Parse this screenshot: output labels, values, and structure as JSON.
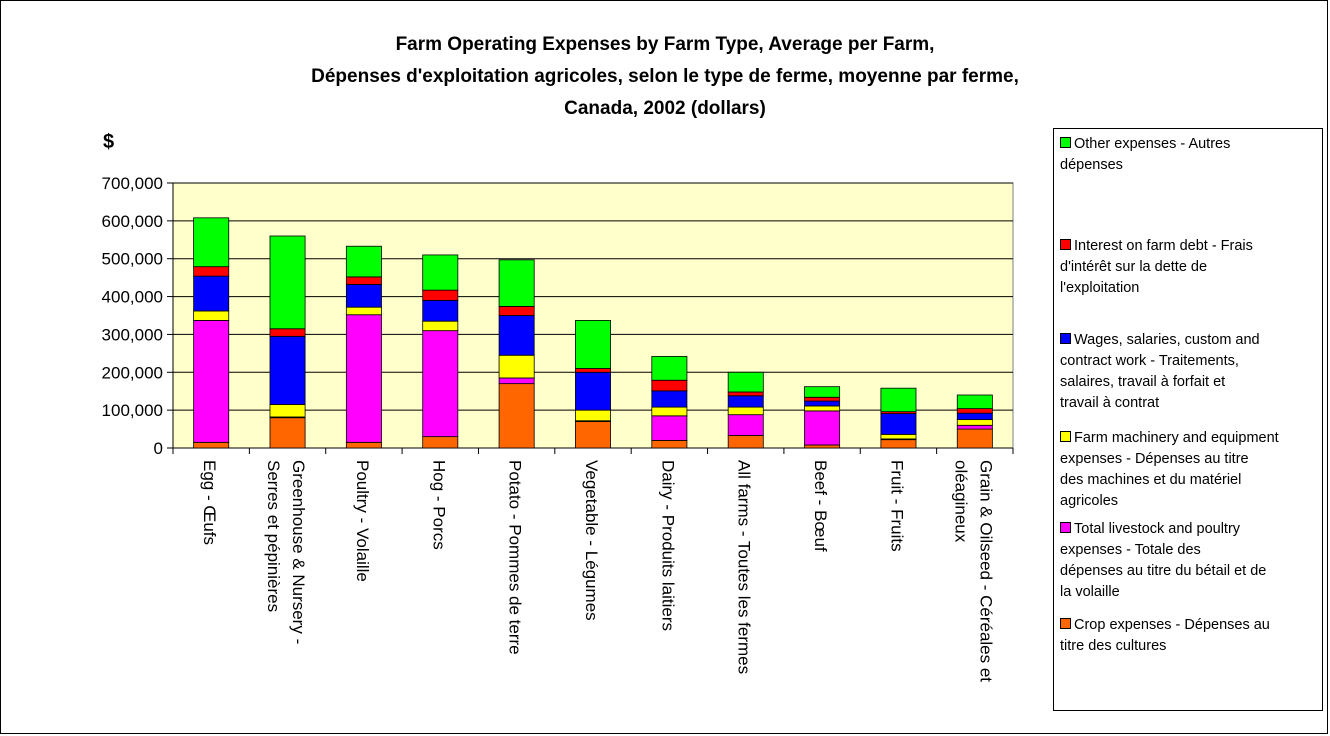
{
  "title_lines": [
    "Farm Operating Expenses by Farm Type, Average per Farm,",
    "Dépenses d'exploitation agricoles, selon le type de ferme, moyenne par ferme,",
    "Canada, 2002 (dollars)"
  ],
  "colors": {
    "plot_background": "#ffffcc",
    "crop": "#ff6600",
    "livestock": "#ff00ff",
    "machinery": "#ffff00",
    "wages": "#0000ff",
    "interest": "#ff0000",
    "other": "#00ff00"
  },
  "chart_data": {
    "type": "bar",
    "stacked": true,
    "ylabel": "$",
    "ylim": [
      0,
      700000
    ],
    "yticks": [
      0,
      100000,
      200000,
      300000,
      400000,
      500000,
      600000,
      700000
    ],
    "ytick_labels": [
      "0",
      "100,000",
      "200,000",
      "300,000",
      "400,000",
      "500,000",
      "600,000",
      "700,000"
    ],
    "grid": true,
    "legend_position": "right",
    "categories": [
      [
        "Egg - Œufs"
      ],
      [
        "Greenhouse & Nursery -",
        "Serres et pépinières"
      ],
      [
        "Poultry - Volaille"
      ],
      [
        "Hog - Porcs"
      ],
      [
        "Potato - Pommes de terre"
      ],
      [
        "Vegetable - Légumes"
      ],
      [
        "Dairy - Produits laitiers"
      ],
      [
        "All farms - Toutes les fermes"
      ],
      [
        "Beef - Bœuf"
      ],
      [
        "Fruit - Fruits"
      ],
      [
        "Grain & Oilseed - Céréales et",
        "oléagineux"
      ]
    ],
    "series": [
      {
        "name": "Crop expenses - Dépenses au titre des cultures",
        "key": "crop",
        "values": [
          15000,
          80000,
          15000,
          30000,
          170000,
          70000,
          20000,
          33000,
          8000,
          22000,
          50000
        ]
      },
      {
        "name": "Total livestock and poultry expenses - Totale des dépenses au titre du bétail et de la volaille",
        "key": "livestock",
        "values": [
          322000,
          2000,
          337000,
          280000,
          15000,
          2000,
          65000,
          55000,
          90000,
          2000,
          10000
        ]
      },
      {
        "name": "Farm machinery and equipment expenses - Dépenses au titre des machines et du matériel agricoles",
        "key": "machinery",
        "values": [
          25000,
          33000,
          20000,
          25000,
          60000,
          28000,
          23000,
          20000,
          13000,
          12000,
          15000
        ]
      },
      {
        "name": "Wages, salaries, custom and contract work - Traitements, salaires, travail à forfait et travail à contrat",
        "key": "wages",
        "values": [
          92000,
          180000,
          60000,
          55000,
          105000,
          100000,
          43000,
          30000,
          13000,
          55000,
          17000
        ]
      },
      {
        "name": "Interest on farm debt - Frais d'intérêt sur la dette de l'exploitation",
        "key": "interest",
        "values": [
          25000,
          20000,
          20000,
          27000,
          24000,
          10000,
          28000,
          10000,
          10000,
          5000,
          12000
        ]
      },
      {
        "name": "Other expenses - Autres dépenses",
        "key": "other",
        "values": [
          129000,
          245000,
          81000,
          93000,
          123000,
          127000,
          63000,
          52000,
          28000,
          62000,
          36000
        ]
      }
    ]
  },
  "legend_items": [
    {
      "key": "other",
      "lines": [
        "Other expenses - Autres",
        "dépenses"
      ]
    },
    {
      "key": "interest",
      "lines": [
        "Interest on farm debt - Frais",
        "d'intérêt sur la dette de",
        "l'exploitation"
      ]
    },
    {
      "key": "wages",
      "lines": [
        "Wages, salaries, custom and",
        "contract work - Traitements,",
        "salaires, travail à forfait et",
        "travail à contrat"
      ]
    },
    {
      "key": "machinery",
      "lines": [
        "Farm machinery and equipment",
        "expenses - Dépenses au titre",
        "des machines et du matériel",
        "agricoles"
      ]
    },
    {
      "key": "livestock",
      "lines": [
        "Total livestock and poultry",
        "expenses - Totale des",
        "dépenses au titre du bétail et de",
        "la volaille"
      ]
    },
    {
      "key": "crop",
      "lines": [
        "Crop expenses - Dépenses au",
        "titre des cultures"
      ]
    }
  ]
}
